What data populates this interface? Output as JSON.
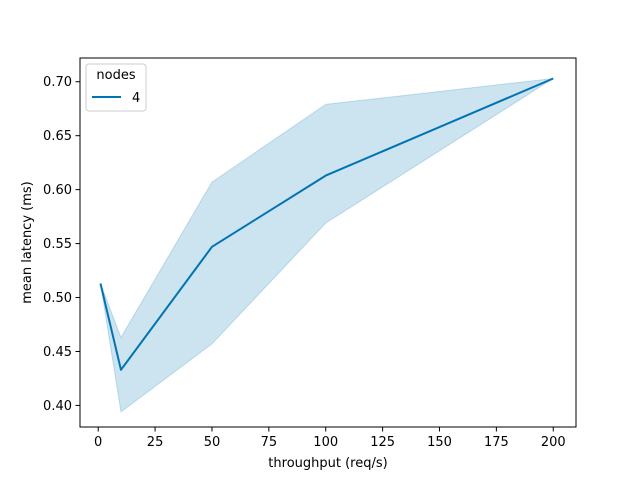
{
  "chart_data": {
    "type": "line",
    "xlabel": "throughput (req/s)",
    "ylabel": "mean latency (ms)",
    "xlim": [
      -8,
      210
    ],
    "ylim": [
      0.38,
      0.722
    ],
    "xticks": [
      0,
      25,
      50,
      75,
      100,
      125,
      150,
      175,
      200
    ],
    "yticks": [
      0.4,
      0.45,
      0.5,
      0.55,
      0.6,
      0.65,
      0.7
    ],
    "xtick_labels": [
      "0",
      "25",
      "50",
      "75",
      "100",
      "125",
      "150",
      "175",
      "200"
    ],
    "ytick_labels": [
      "0.40",
      "0.45",
      "0.50",
      "0.55",
      "0.60",
      "0.65",
      "0.70"
    ],
    "legend": {
      "title": "nodes",
      "placement": "top-left",
      "entries": [
        "4"
      ]
    },
    "grid": false,
    "series": [
      {
        "name": "4",
        "color": "#0173b2",
        "x": [
          1,
          10,
          50,
          100,
          200
        ],
        "y": [
          0.513,
          0.433,
          0.547,
          0.613,
          0.703
        ],
        "ci_lower": [
          0.513,
          0.394,
          0.457,
          0.569,
          0.703
        ],
        "ci_upper": [
          0.513,
          0.463,
          0.607,
          0.679,
          0.703
        ]
      }
    ]
  }
}
